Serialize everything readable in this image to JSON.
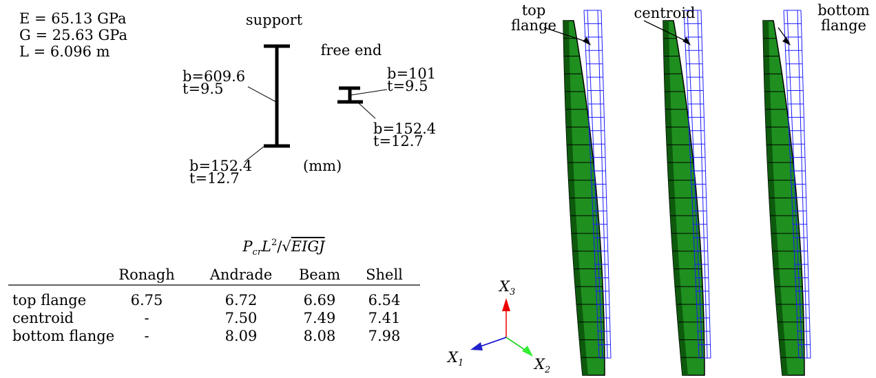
{
  "parameters": [
    "E = 65.13 GPa",
    "G = 25.63 GPa",
    "L = 6.096 m"
  ],
  "cross_section": {
    "support_label": "support",
    "free_end_label": "free end",
    "units": "(mm)",
    "support": {
      "upper": {
        "b": "b=609.6",
        "t": "t=9.5"
      },
      "lower": {
        "b": "b=152.4",
        "t": "t=12.7"
      }
    },
    "free_end": {
      "upper": {
        "b": "b=101",
        "t": "t=9.5"
      },
      "lower": {
        "b": "b=152.4",
        "t": "t=12.7"
      }
    }
  },
  "table": {
    "caption": [
      "P",
      "cr",
      "L",
      "2",
      "/√",
      "EIGJ"
    ],
    "columns": [
      "Ronagh",
      "Andrade",
      "Beam",
      "Shell"
    ],
    "rows": [
      {
        "label": "top flange",
        "values": [
          "6.75",
          "6.72",
          "6.69",
          "6.54"
        ]
      },
      {
        "label": "centroid",
        "values": [
          "-",
          "7.50",
          "7.49",
          "7.41"
        ]
      },
      {
        "label": "bottom flange",
        "values": [
          "-",
          "8.09",
          "8.08",
          "7.98"
        ]
      }
    ]
  },
  "beams": {
    "labels": [
      [
        "top",
        "flange"
      ],
      [
        "centroid"
      ],
      [
        "bottom",
        "flange"
      ]
    ]
  },
  "axes": [
    {
      "base": "X",
      "sub": "3"
    },
    {
      "base": "X",
      "sub": "1"
    },
    {
      "base": "X",
      "sub": "2"
    }
  ]
}
